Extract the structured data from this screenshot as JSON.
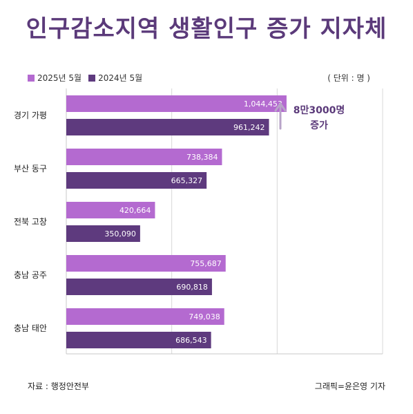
{
  "title": "인구감소지역 생활인구 증가 지자체",
  "unit_label": "( 단위 : 명 )",
  "source": "자료 : 행정안전부",
  "credit": "그래픽=윤은영 기자",
  "annotation": {
    "line1": "8만3000명",
    "line2": "증가"
  },
  "colors": {
    "series_2025": "#b46ad0",
    "series_2024": "#5e3a7e",
    "grid": "#d8d8d8",
    "title": "#5b3a7a"
  },
  "chart_data": {
    "type": "bar",
    "orientation": "horizontal",
    "categories": [
      "경기 가평",
      "부산 동구",
      "전북 고창",
      "충남 공주",
      "충남 태안"
    ],
    "series": [
      {
        "name": "2025년 5월",
        "values": [
          1044453,
          738384,
          420664,
          755687,
          749038
        ]
      },
      {
        "name": "2024년 5월",
        "values": [
          961242,
          665327,
          350090,
          690818,
          686543
        ]
      }
    ],
    "value_labels": [
      [
        "1,044,453",
        "738,384",
        "420,664",
        "755,687",
        "749,038"
      ],
      [
        "961,242",
        "665,327",
        "350,090",
        "690,818",
        "686,543"
      ]
    ],
    "xlim": [
      0,
      1500000
    ],
    "grid": true,
    "legend_position": "top-left"
  }
}
